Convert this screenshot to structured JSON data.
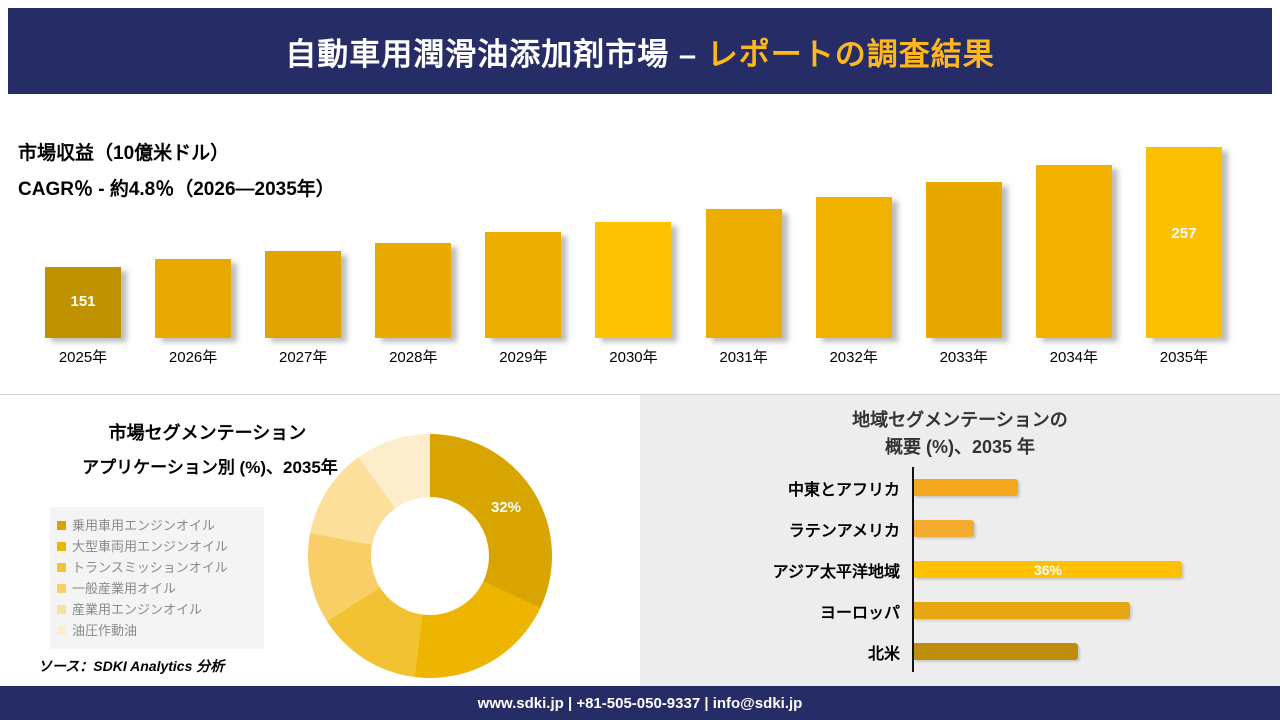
{
  "header": {
    "title_main": "自動車用潤滑油添加剤市場 –",
    "title_accent": "レポートの調査結果"
  },
  "colors": {
    "navy": "#262d66",
    "accent_gold": "#ffb81c"
  },
  "chart_data": [
    {
      "type": "bar",
      "title": "市場収益（10億米ドル）",
      "subtitle": "CAGR％ - 約4.8％（2026―2035年）",
      "categories": [
        "2025年",
        "2026年",
        "2027年",
        "2028年",
        "2029年",
        "2030年",
        "2031年",
        "2032年",
        "2033年",
        "2034年",
        "2035年"
      ],
      "values": [
        151,
        158,
        165,
        172,
        182,
        191,
        202,
        213,
        226,
        241,
        257
      ],
      "first_label": "151",
      "last_label": "257",
      "colors": [
        "#c19200",
        "#e8a900",
        "#e1a400",
        "#eaab00",
        "#edae00",
        "#fdc202",
        "#eead01",
        "#f1b100",
        "#e9a800",
        "#f2b100",
        "#fdbf01"
      ],
      "ylim": [
        0,
        260
      ],
      "grid": false,
      "legend_position": "none"
    },
    {
      "type": "pie",
      "subtype": "donut",
      "title": "市場セグメンテーション",
      "subtitle": "アプリケーション別 (%)、2035年",
      "legend": [
        "乗用車用エンジンオイル",
        "大型車両用エンジンオイル",
        "トランスミッションオイル",
        "一般産業用オイル",
        "産業用エンジンオイル",
        "油圧作動油"
      ],
      "values": [
        32,
        20,
        14,
        12,
        12,
        10
      ],
      "colors": [
        "#d8a400",
        "#eeb500",
        "#f3c233",
        "#f7cf66",
        "#fbdf9b",
        "#fdeecb"
      ],
      "callout_label": "32%",
      "callout_index": 0,
      "source_note": "ソース：SDKI Analytics 分析",
      "legend_position": "left"
    },
    {
      "type": "bar",
      "subtype": "horizontal",
      "title_line1": "地域セグメンテーションの",
      "title_line2": "概要 (%)、2035 年",
      "categories": [
        "中東とアフリカ",
        "ラテンアメリカ",
        "アジア太平洋地域",
        "ヨーロッパ",
        "北米"
      ],
      "values": [
        14,
        8,
        36,
        29,
        22
      ],
      "colors": [
        "#f2a71f",
        "#f4ac30",
        "#ffc003",
        "#e7a714",
        "#be8e0e"
      ],
      "callout_label": "36%",
      "callout_index": 2,
      "xlim": [
        0,
        36
      ],
      "grid": false
    }
  ],
  "footer": {
    "contact": "www.sdki.jp | +81-505-050-9337 | info@sdki.jp"
  }
}
